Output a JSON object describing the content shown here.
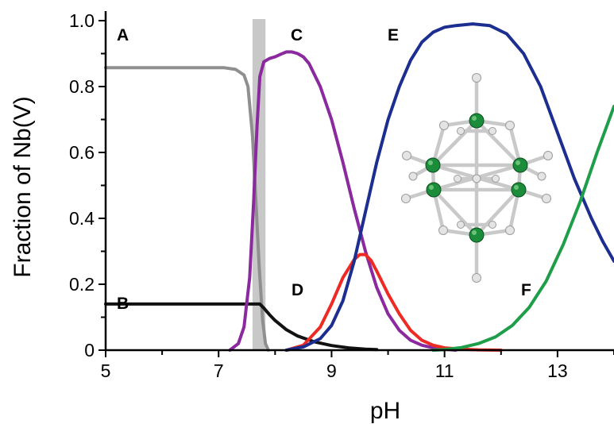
{
  "chart_data": {
    "type": "line",
    "xlabel": "pH",
    "ylabel": "Fraction of Nb(V)",
    "xlim": [
      5,
      14
    ],
    "ylim": [
      0,
      1.0
    ],
    "x_ticks": [
      "5",
      "7",
      "9",
      "11",
      "13"
    ],
    "y_ticks": [
      "0",
      "0.2",
      "0.4",
      "0.6",
      "0.8",
      "1.0"
    ],
    "grid": false,
    "highlight_band": {
      "x_range": [
        7.6,
        7.83
      ],
      "color": "#c8c8c8"
    },
    "series": [
      {
        "name": "A",
        "color": "#8f8f8f",
        "x": [
          5,
          6,
          7.1,
          7.3,
          7.45,
          7.52,
          7.6,
          7.66,
          7.72,
          7.78,
          7.83,
          7.88
        ],
        "y": [
          0.857,
          0.857,
          0.857,
          0.852,
          0.835,
          0.8,
          0.65,
          0.45,
          0.25,
          0.09,
          0.02,
          0
        ]
      },
      {
        "name": "B",
        "color": "#111111",
        "x": [
          5,
          6,
          7.0,
          7.6,
          7.73,
          7.8,
          7.9,
          8.0,
          8.2,
          8.4,
          8.7,
          9.0,
          9.3,
          9.6,
          9.8
        ],
        "y": [
          0.14,
          0.14,
          0.14,
          0.14,
          0.14,
          0.128,
          0.108,
          0.09,
          0.062,
          0.043,
          0.025,
          0.014,
          0.007,
          0.003,
          0.002
        ]
      },
      {
        "name": "C",
        "color": "#8b2a9e",
        "x": [
          7.2,
          7.35,
          7.45,
          7.55,
          7.62,
          7.68,
          7.73,
          7.8,
          7.9,
          8.0,
          8.1,
          8.2,
          8.3,
          8.4,
          8.5,
          8.6,
          8.8,
          9.0,
          9.2,
          9.4,
          9.6,
          9.8,
          10.0,
          10.2,
          10.4,
          10.6,
          10.8,
          11.0,
          11.2
        ],
        "y": [
          0.0,
          0.02,
          0.07,
          0.22,
          0.45,
          0.68,
          0.83,
          0.875,
          0.885,
          0.89,
          0.898,
          0.905,
          0.905,
          0.9,
          0.89,
          0.87,
          0.8,
          0.7,
          0.57,
          0.43,
          0.3,
          0.19,
          0.11,
          0.06,
          0.03,
          0.015,
          0.007,
          0.003,
          0.0
        ]
      },
      {
        "name": "D",
        "color": "#ee2a24",
        "x": [
          8.2,
          8.5,
          8.8,
          9.0,
          9.2,
          9.4,
          9.5,
          9.6,
          9.7,
          9.8,
          10.0,
          10.2,
          10.4,
          10.6,
          10.8,
          11.0,
          11.3,
          11.6,
          12.0
        ],
        "y": [
          0.0,
          0.015,
          0.07,
          0.14,
          0.22,
          0.275,
          0.29,
          0.29,
          0.272,
          0.24,
          0.17,
          0.11,
          0.06,
          0.03,
          0.015,
          0.007,
          0.003,
          0.001,
          0.0
        ]
      },
      {
        "name": "E",
        "color": "#1c2e8f",
        "x": [
          8.2,
          8.5,
          8.8,
          9.0,
          9.2,
          9.4,
          9.6,
          9.8,
          10.0,
          10.2,
          10.4,
          10.6,
          10.8,
          11.0,
          11.2,
          11.5,
          11.8,
          12.1,
          12.4,
          12.7,
          13.0,
          13.3,
          13.6,
          13.8,
          14.0
        ],
        "y": [
          0.0,
          0.01,
          0.035,
          0.075,
          0.15,
          0.27,
          0.42,
          0.57,
          0.7,
          0.8,
          0.88,
          0.935,
          0.965,
          0.98,
          0.985,
          0.99,
          0.985,
          0.96,
          0.9,
          0.8,
          0.66,
          0.52,
          0.4,
          0.33,
          0.27
        ]
      },
      {
        "name": "F",
        "color": "#1f9e4a",
        "x": [
          10.8,
          11.0,
          11.3,
          11.6,
          11.9,
          12.2,
          12.5,
          12.8,
          13.1,
          13.4,
          13.7,
          14.0
        ],
        "y": [
          0.0,
          0.002,
          0.008,
          0.02,
          0.04,
          0.075,
          0.13,
          0.21,
          0.32,
          0.45,
          0.6,
          0.74
        ]
      }
    ]
  }
}
